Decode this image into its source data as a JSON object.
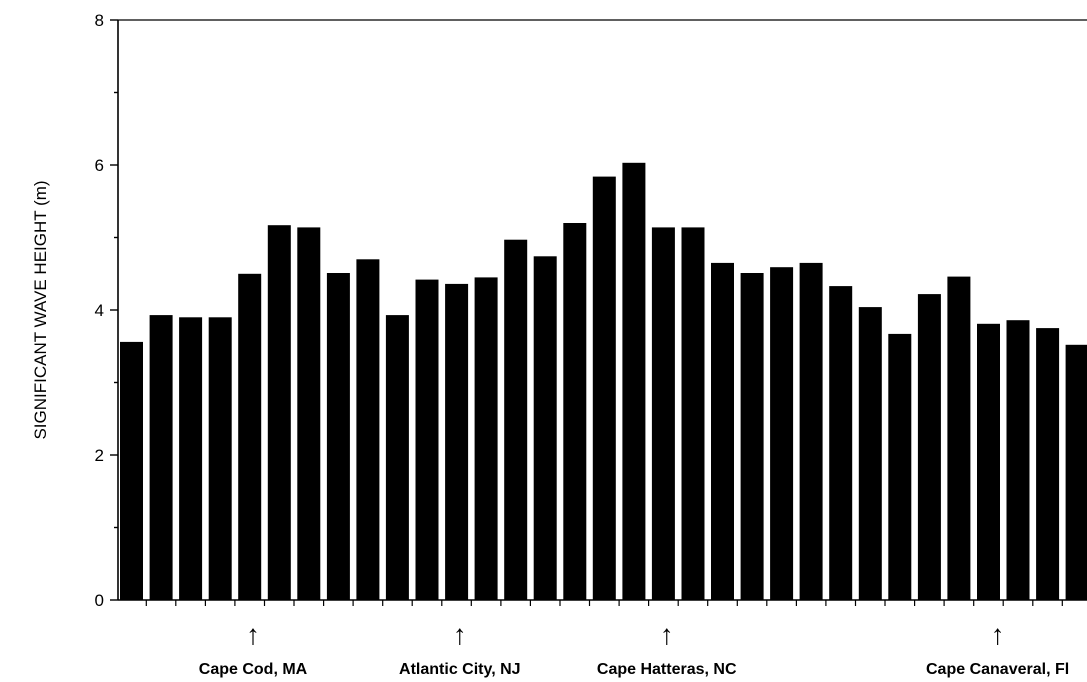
{
  "chart_data": {
    "type": "bar",
    "ylabel": "SIGNIFICANT WAVE HEIGHT (m)",
    "xlabel": "",
    "ylim": [
      0,
      8
    ],
    "yticks": [
      "0",
      "2",
      "4",
      "6",
      "8"
    ],
    "grid": false,
    "values": [
      3.56,
      3.93,
      3.9,
      3.9,
      4.5,
      5.17,
      5.14,
      4.51,
      4.7,
      3.93,
      4.42,
      4.36,
      4.45,
      4.97,
      4.74,
      5.2,
      5.84,
      6.03,
      5.14,
      5.14,
      4.65,
      4.51,
      4.59,
      4.65,
      4.33,
      4.04,
      3.67,
      4.22,
      4.46,
      3.81,
      3.86,
      3.75,
      3.52
    ],
    "annotations": [
      {
        "label": "Cape Cod, MA",
        "bar_index": 4.5,
        "marker": "↑"
      },
      {
        "label": "Atlantic City, NJ",
        "bar_index": 11.5,
        "marker": "↑"
      },
      {
        "label": "Cape Hatteras, NC",
        "bar_index": 18.5,
        "marker": "↑"
      },
      {
        "label": "Cape Canaveral, Fl",
        "bar_index": 29.7,
        "marker": "↑"
      }
    ],
    "colors": {
      "bar": "#000000",
      "axis": "#000000"
    }
  }
}
